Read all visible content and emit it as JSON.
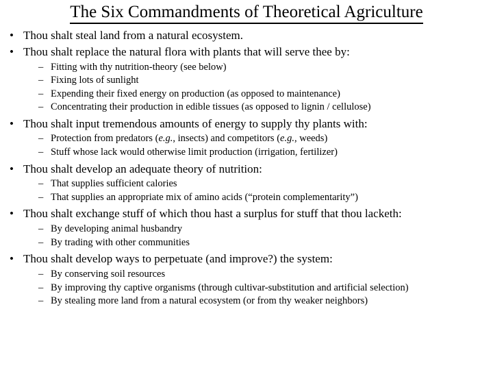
{
  "title": "The Six Commandments of Theoretical Agriculture",
  "style": {
    "background": "#ffffff",
    "text_color": "#000000",
    "title_fontsize": 25,
    "main_fontsize": 17,
    "sub_fontsize": 14.5,
    "font_family": "Times New Roman",
    "main_bullet": "•",
    "sub_bullet": "–",
    "underline_color": "#000000"
  },
  "items": [
    {
      "text": "Thou shalt steal land from a natural ecosystem.",
      "subs": []
    },
    {
      "text": "Thou shalt replace the natural flora with plants that will serve thee by:",
      "subs": [
        "Fitting with thy nutrition-theory (see below)",
        "Fixing lots of sunlight",
        "Expending their fixed energy on production (as opposed to maintenance)",
        "Concentrating their production in edible tissues (as opposed to lignin / cellulose)"
      ]
    },
    {
      "text": "Thou shalt input tremendous amounts of energy to supply thy plants with:",
      "subs": [
        "Protection from predators (e.g., insects) and competitors (e.g., weeds)",
        "Stuff whose lack would otherwise limit production (irrigation, fertilizer)"
      ]
    },
    {
      "text": "Thou shalt develop an adequate theory of nutrition:",
      "subs": [
        "That supplies sufficient calories",
        "That supplies an appropriate mix of amino acids (“protein complementarity”)"
      ]
    },
    {
      "text": "Thou shalt exchange stuff of which thou hast a surplus for stuff that thou lacketh:",
      "subs": [
        "By developing animal husbandry",
        "By trading with other communities"
      ]
    },
    {
      "text": "Thou shalt develop ways to perpetuate (and improve?) the system:",
      "subs": [
        "By conserving soil resources",
        "By improving thy captive organisms (through cultivar-substitution and artificial selection)",
        "By stealing more land from a natural ecosystem (or from thy weaker neighbors)"
      ]
    }
  ]
}
